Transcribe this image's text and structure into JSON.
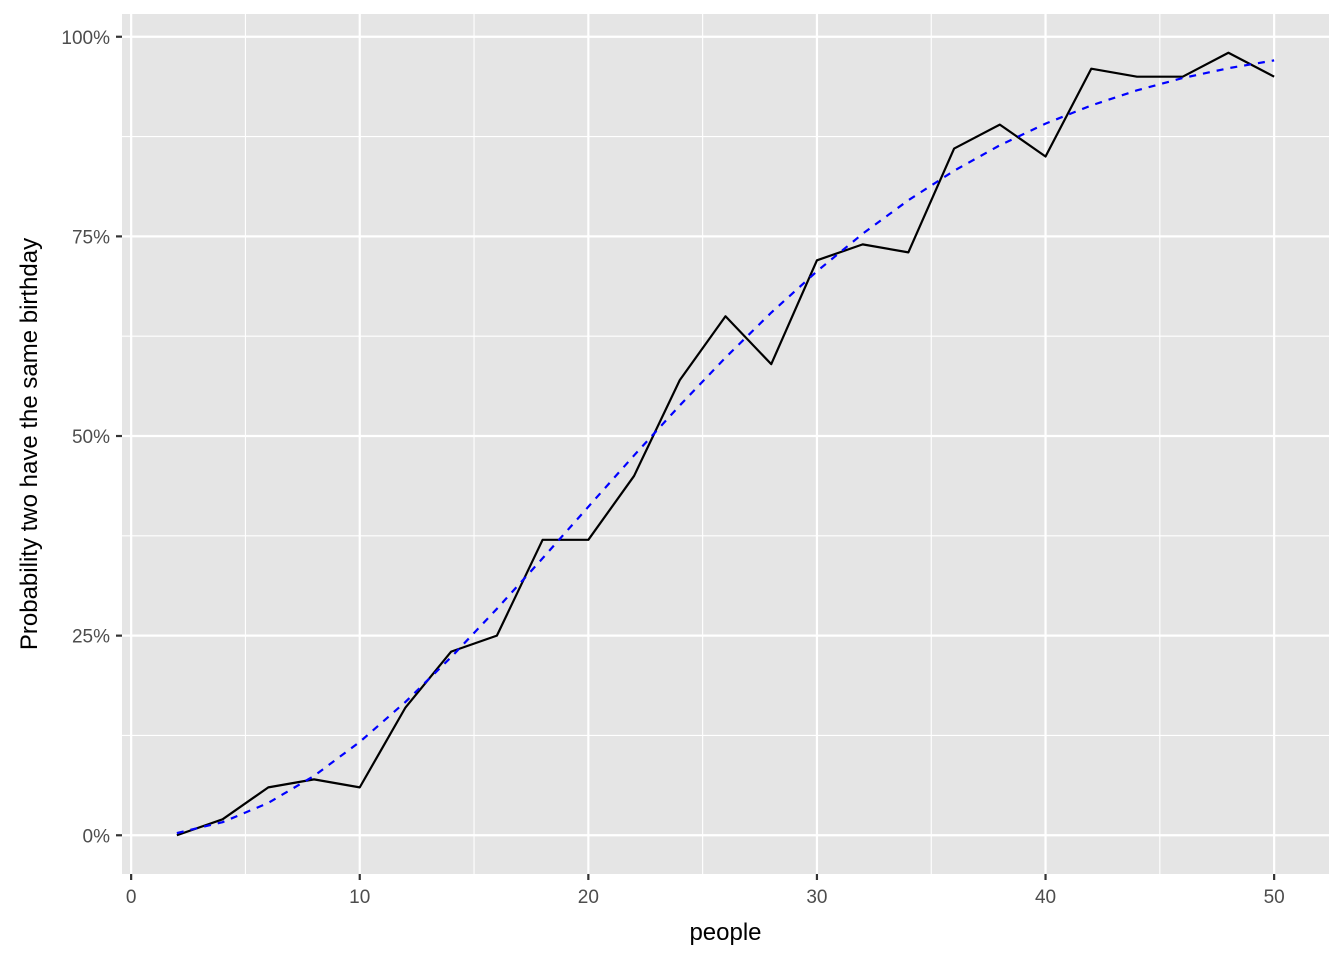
{
  "chart_data": {
    "type": "line",
    "xlabel": "people",
    "ylabel": "Probability two have the same birthday",
    "xlim": [
      -0.4,
      52.4
    ],
    "ylim": [
      -0.0485,
      1.0285
    ],
    "x_ticks": [
      0,
      10,
      20,
      30,
      40,
      50
    ],
    "x_minor_ticks": [
      5,
      15,
      25,
      35,
      45
    ],
    "x_tick_labels": [
      "0",
      "10",
      "20",
      "30",
      "40",
      "50"
    ],
    "y_ticks": [
      0,
      0.25,
      0.5,
      0.75,
      1.0
    ],
    "y_minor_ticks": [
      0.125,
      0.375,
      0.625,
      0.875
    ],
    "y_tick_labels": [
      "0%",
      "25%",
      "50%",
      "75%",
      "100%"
    ],
    "grid": true,
    "panel_background": "#e5e5e5",
    "x": [
      2,
      4,
      6,
      8,
      10,
      12,
      14,
      16,
      18,
      20,
      22,
      24,
      26,
      28,
      30,
      32,
      34,
      36,
      38,
      40,
      42,
      44,
      46,
      48,
      50
    ],
    "series": [
      {
        "style": "solid",
        "color": "#000000",
        "values": [
          0.0,
          0.02,
          0.06,
          0.07,
          0.06,
          0.16,
          0.23,
          0.25,
          0.37,
          0.37,
          0.45,
          0.57,
          0.65,
          0.59,
          0.72,
          0.74,
          0.73,
          0.86,
          0.89,
          0.85,
          0.96,
          0.95,
          0.95,
          0.98,
          0.95
        ]
      },
      {
        "style": "dashed",
        "color": "#0000ff",
        "values": [
          0.0027,
          0.0164,
          0.0405,
          0.0743,
          0.1169,
          0.167,
          0.2231,
          0.2836,
          0.3469,
          0.4114,
          0.4757,
          0.5383,
          0.5982,
          0.6545,
          0.7063,
          0.7533,
          0.7953,
          0.8322,
          0.8641,
          0.8912,
          0.914,
          0.9329,
          0.9483,
          0.9606,
          0.9704
        ]
      }
    ]
  }
}
